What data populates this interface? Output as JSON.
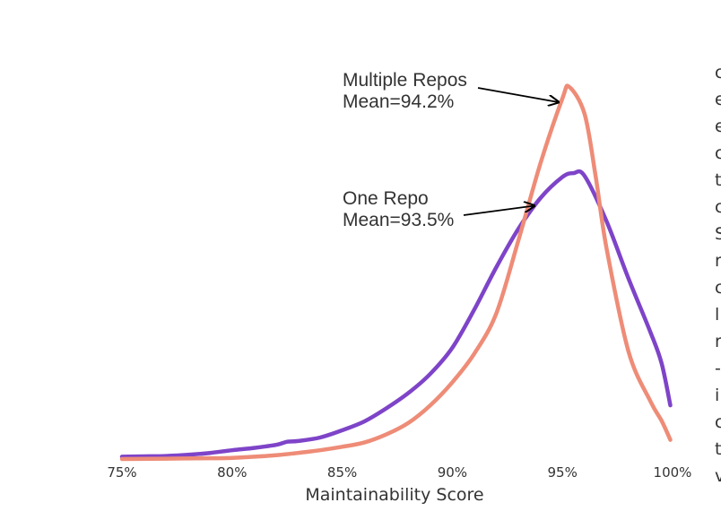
{
  "chart_data": {
    "type": "line",
    "xlabel": "Maintainability Score",
    "x_ticks": [
      "75%",
      "80%",
      "85%",
      "90%",
      "95%",
      "100%"
    ],
    "xlim": [
      75,
      100
    ],
    "ylim": [
      0,
      1
    ],
    "grid": false,
    "series": [
      {
        "label": "One Repo",
        "color": "#7E44C8",
        "x": [
          75,
          76,
          77,
          78,
          79,
          80,
          81,
          82,
          82.5,
          83,
          84,
          85,
          86,
          87,
          88,
          89,
          90,
          91,
          92,
          93,
          94,
          95,
          95.5,
          96,
          97,
          98,
          99,
          99.5,
          99.9
        ],
        "y": [
          0.006,
          0.007,
          0.008,
          0.011,
          0.016,
          0.023,
          0.029,
          0.037,
          0.045,
          0.047,
          0.056,
          0.075,
          0.098,
          0.132,
          0.172,
          0.222,
          0.29,
          0.39,
          0.5,
          0.6,
          0.68,
          0.735,
          0.745,
          0.738,
          0.62,
          0.47,
          0.33,
          0.25,
          0.14
        ]
      },
      {
        "label": "Multiple Repos",
        "color": "#EE8C77",
        "x": [
          75,
          77,
          79,
          80,
          81,
          82,
          83,
          84,
          85,
          86,
          87,
          88,
          89,
          90,
          91,
          92,
          93,
          94,
          95,
          95.3,
          96,
          96.5,
          97,
          98,
          99,
          99.5,
          99.9
        ],
        "y": [
          0.0,
          0.001,
          0.002,
          0.003,
          0.006,
          0.01,
          0.016,
          0.023,
          0.032,
          0.043,
          0.064,
          0.094,
          0.14,
          0.2,
          0.275,
          0.38,
          0.57,
          0.77,
          0.94,
          0.97,
          0.9,
          0.74,
          0.55,
          0.28,
          0.15,
          0.1,
          0.05
        ]
      }
    ],
    "annotations": [
      {
        "lines": [
          "Multiple Repos",
          "Mean=94.2%"
        ],
        "target_series": "Multiple Repos",
        "target_x": 94.9,
        "target_y": 0.93
      },
      {
        "lines": [
          "One Repo",
          "Mean=93.5%"
        ],
        "target_series": "One Repo",
        "target_x": 93.8,
        "target_y": 0.66
      }
    ]
  },
  "side_text": [
    "c",
    "e",
    "e",
    "c",
    "t",
    "c",
    "S",
    "r",
    "c",
    "l",
    "r",
    "-",
    "i",
    "c",
    "t",
    "v"
  ],
  "side_text_colors": {
    "c_6": "#B06A3A",
    "c_14": "#B06A3A"
  }
}
